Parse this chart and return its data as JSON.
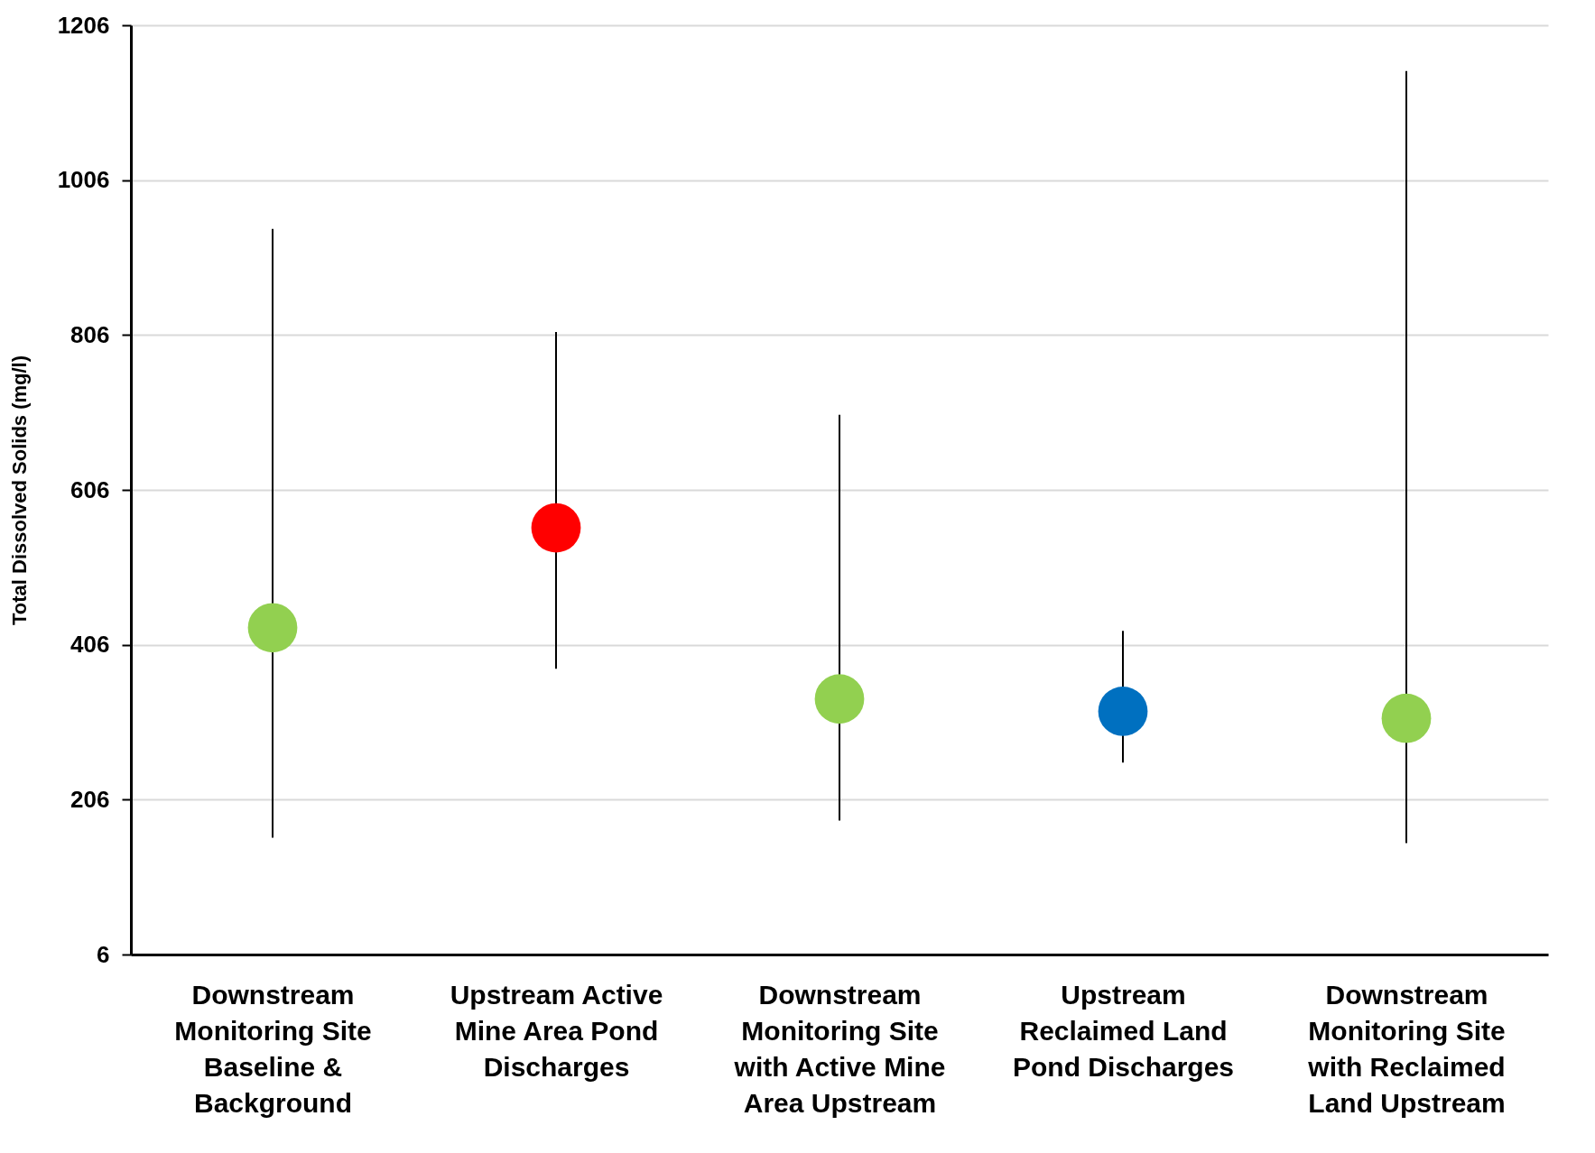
{
  "chart_data": {
    "type": "scatter",
    "ylabel": "Total Dissolved Solids (mg/l)",
    "categories": [
      "Downstream Monitoring Site Baseline & Background",
      "Upstream Active Mine Area Pond Discharges",
      "Downstream Monitoring Site with Active Mine Area Upstream",
      "Upstream Reclaimed Land Pond Discharges",
      "Downstream Monitoring Site with Reclaimed Land Upstream"
    ],
    "values": [
      428,
      557,
      336,
      320,
      311
    ],
    "colors": [
      "#92d050",
      "#ff0000",
      "#92d050",
      "#0070c0",
      "#92d050"
    ],
    "errors": [
      [
        157,
        943
      ],
      [
        375,
        810
      ],
      [
        179,
        703
      ],
      [
        254,
        424
      ],
      [
        150,
        1147
      ]
    ],
    "ylim": [
      6,
      1206
    ],
    "yticks": [
      6,
      206,
      406,
      606,
      806,
      1006,
      1206
    ],
    "grid": "y",
    "marker": "circle"
  }
}
